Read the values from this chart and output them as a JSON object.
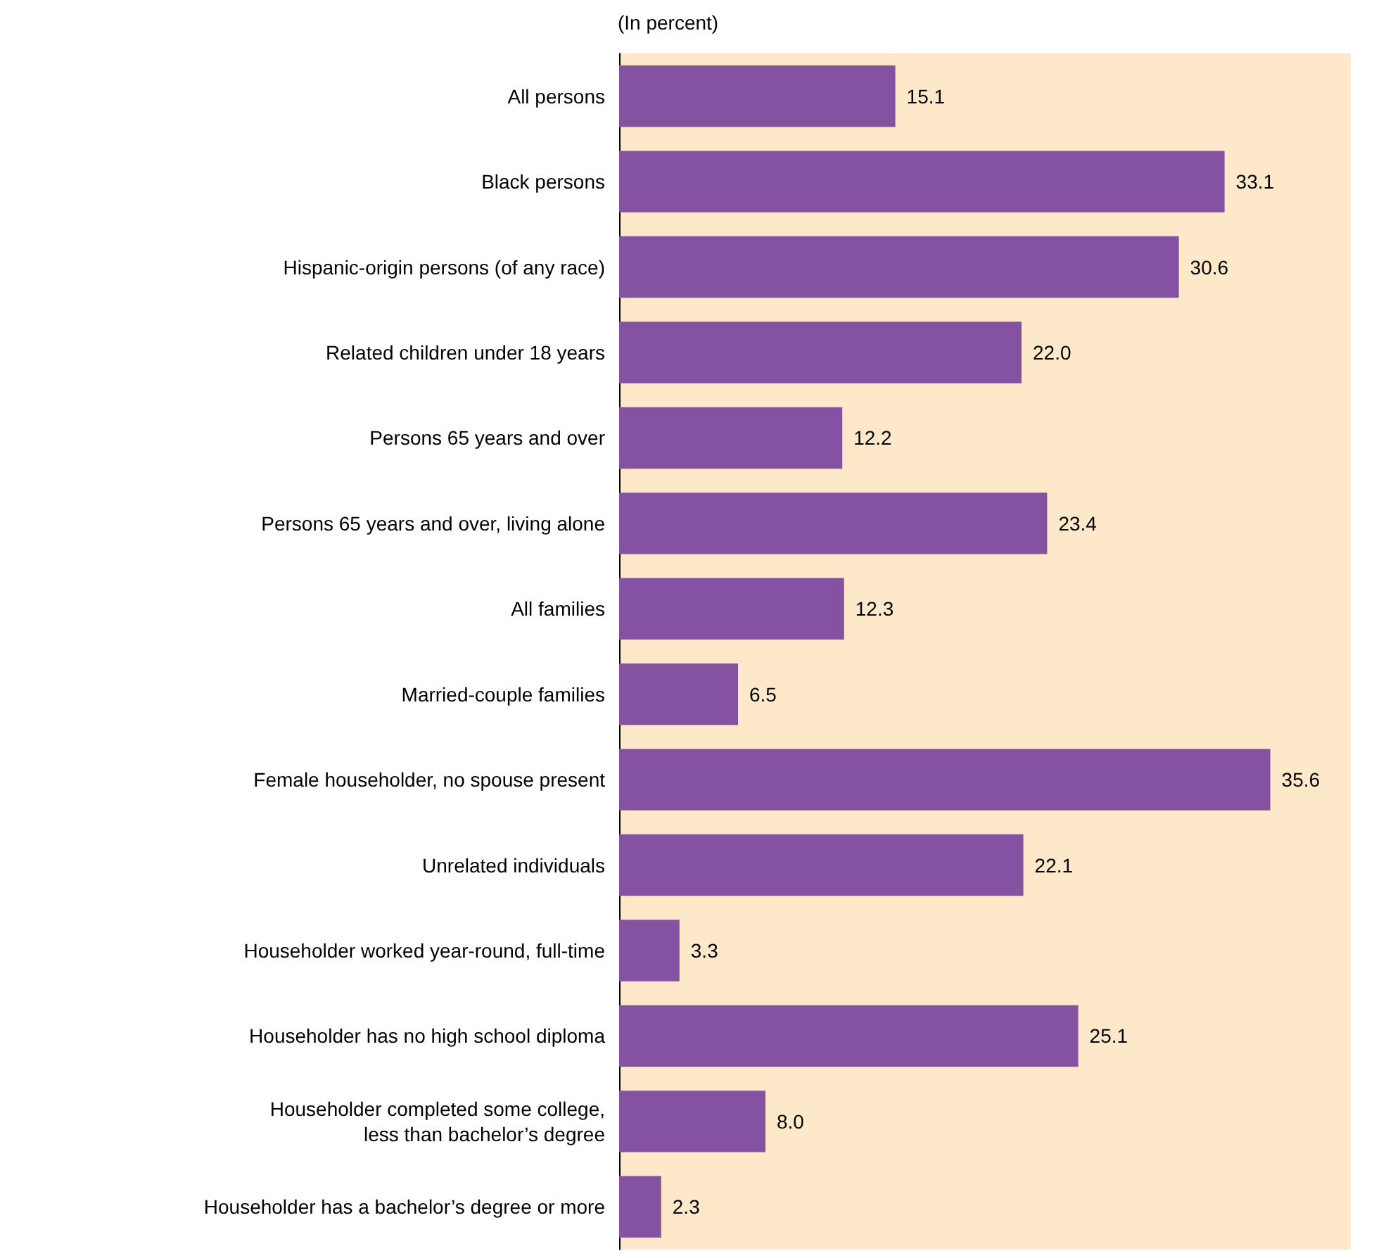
{
  "chart_data": {
    "type": "bar",
    "orientation": "horizontal",
    "subtitle": "(In percent)",
    "categories": [
      "All persons",
      "Black persons",
      "Hispanic-origin persons (of any race)",
      "Related children under 18 years",
      "Persons 65 years and over",
      "Persons 65 years and over, living alone",
      "All families",
      "Married-couple families",
      "Female householder, no spouse present",
      "Unrelated individuals",
      "Householder worked year-round, full-time",
      "Householder has no high school diploma",
      "Householder completed some college, less than bachelor’s degree",
      "Householder has a bachelor’s degree or more"
    ],
    "values": [
      15.1,
      33.1,
      30.6,
      22.0,
      12.2,
      23.4,
      12.3,
      6.5,
      35.6,
      22.1,
      3.3,
      25.1,
      8.0,
      2.3
    ],
    "value_labels": [
      "15.1",
      "33.1",
      "30.6",
      "22.0",
      "12.2",
      "23.4",
      "12.3",
      "6.5",
      "35.6",
      "22.1",
      "3.3",
      "25.1",
      "8.0",
      "2.3"
    ],
    "color": "#8552a1"
  }
}
